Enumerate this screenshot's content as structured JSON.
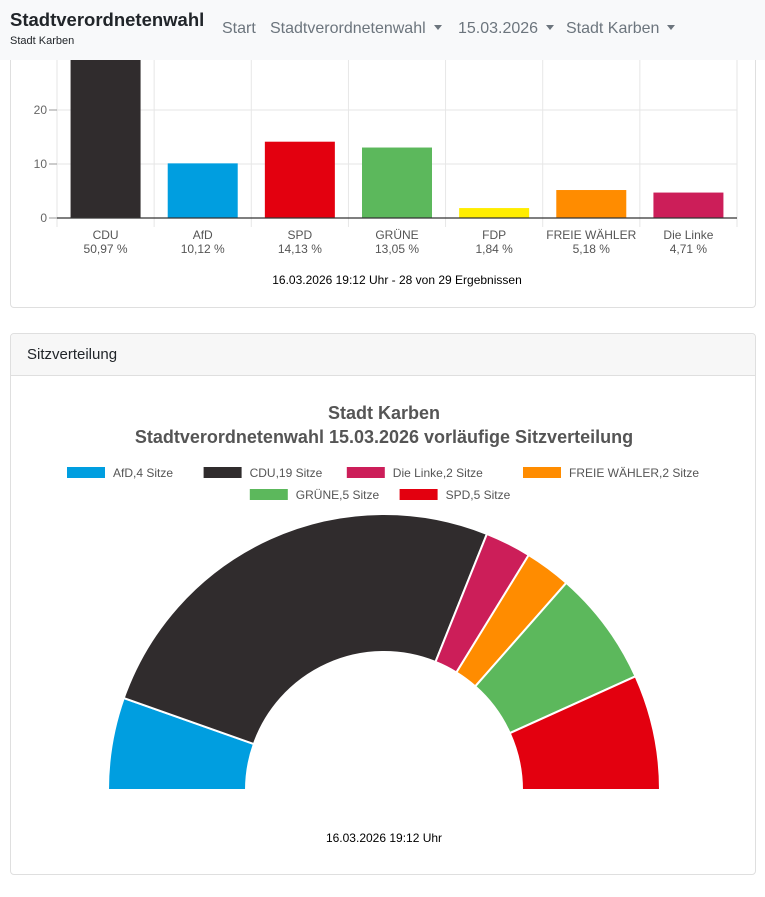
{
  "navbar": {
    "brand_title": "Stadtverordnetenwahl",
    "brand_subtitle": "Stadt Karben",
    "items": [
      {
        "label": "Start",
        "dropdown": false
      },
      {
        "label": "Stadtverordnetenwahl",
        "dropdown": true
      },
      {
        "label": "15.03.2026",
        "dropdown": true
      },
      {
        "label": "Stadt Karben",
        "dropdown": true
      }
    ]
  },
  "result_card": {
    "footer": "16.03.2026 19:12 Uhr - 28 von 29 Ergebnissen"
  },
  "chart_data": [
    {
      "type": "bar",
      "categories": [
        "CDU",
        "AfD",
        "SPD",
        "GRÜNE",
        "FDP",
        "FREIE WÄHLER",
        "Die Linke"
      ],
      "values": [
        50.97,
        10.12,
        14.13,
        13.05,
        1.84,
        5.18,
        4.71
      ],
      "percent_labels": [
        "50,97 %",
        "10,12 %",
        "14,13 %",
        "13,05 %",
        "1,84 %",
        "5,18 %",
        "4,71 %"
      ],
      "colors": [
        "#302c2d",
        "#009ee0",
        "#e3000f",
        "#5cb85c",
        "#ffed00",
        "#ff8c00",
        "#cc1e59"
      ],
      "yticks": [
        0,
        10,
        20
      ],
      "ylim": [
        0,
        60
      ]
    },
    {
      "type": "pie",
      "variant": "semicircle",
      "title": "Stadt Karben",
      "subtitle": "Stadtverordnetenwahl 15.03.2026 vorläufige Sitzverteilung",
      "slices": [
        {
          "label": "AfD",
          "value": 4,
          "color": "#009ee0"
        },
        {
          "label": "CDU",
          "value": 19,
          "color": "#302c2d"
        },
        {
          "label": "Die Linke",
          "value": 2,
          "color": "#cc1e59"
        },
        {
          "label": "FREIE WÄHLER",
          "value": 2,
          "color": "#ff8c00"
        },
        {
          "label": "GRÜNE",
          "value": 5,
          "color": "#5cb85c"
        },
        {
          "label": "SPD",
          "value": 5,
          "color": "#e3000f"
        }
      ],
      "legend": [
        "AfD,4 Sitze",
        "CDU,19 Sitze",
        "Die Linke,2 Sitze",
        "FREIE WÄHLER,2 Sitze",
        "GRÜNE,5 Sitze",
        "SPD,5 Sitze"
      ],
      "footer": "16.03.2026 19:12 Uhr"
    }
  ],
  "seat_card": {
    "header": "Sitzverteilung"
  }
}
